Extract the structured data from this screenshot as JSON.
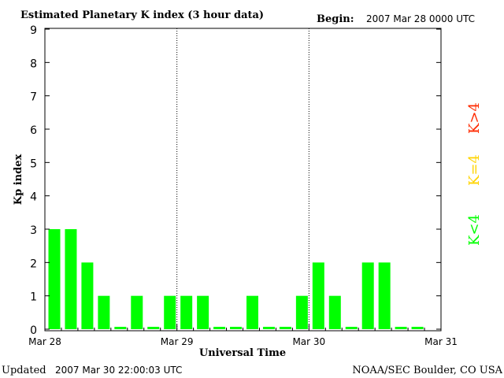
{
  "chart_data": {
    "type": "bar",
    "title": "Estimated Planetary K index (3 hour data)",
    "begin_label": "Begin:",
    "begin_value": "2007 Mar 28 0000 UTC",
    "xlabel": "Universal Time",
    "ylabel": "Kp index",
    "ylim": [
      0,
      9
    ],
    "yticks": [
      "0",
      "1",
      "2",
      "3",
      "4",
      "5",
      "6",
      "7",
      "8",
      "9"
    ],
    "xticks": [
      "Mar 28",
      "Mar 29",
      "Mar 30",
      "Mar 31"
    ],
    "day_separators": [
      "Mar 29",
      "Mar 30"
    ],
    "values": [
      3,
      3,
      2,
      1,
      0,
      1,
      0,
      1,
      1,
      1,
      0,
      0,
      1,
      0,
      0,
      1,
      2,
      1,
      0,
      2,
      2,
      0,
      0
    ],
    "bar_color": "#00ff00",
    "legend": [
      {
        "label": "K>4",
        "color": "#ff2a00"
      },
      {
        "label": "K=4",
        "color": "#ffd400"
      },
      {
        "label": "K<4",
        "color": "#00ff00"
      }
    ],
    "updated_label": "Updated",
    "updated_value": "2007 Mar 30 22:00:03 UTC",
    "credit": "NOAA/SEC Boulder, CO USA"
  }
}
